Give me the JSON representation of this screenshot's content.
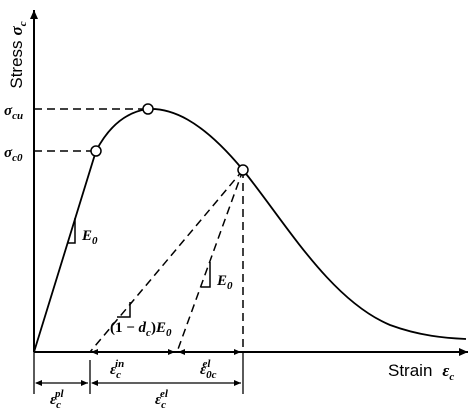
{
  "y_axis": {
    "title": "Stress",
    "symbol": "σ",
    "symbol_sub": "c"
  },
  "x_axis": {
    "title": "Strain",
    "symbol": "ε",
    "symbol_sub": "c"
  },
  "y_labels": {
    "peak": {
      "symbol": "σ",
      "sub": "cu"
    },
    "initial": {
      "symbol": "σ",
      "sub": "c0"
    }
  },
  "slope_labels": {
    "initial_modulus": {
      "symbol": "E",
      "sub": "0"
    },
    "unloading_modulus": {
      "symbol": "E",
      "sub": "0"
    },
    "damaged_modulus": {
      "prefix": "(1 − ",
      "d": "d",
      "d_sub": "c",
      "suffix": ")",
      "symbol": "E",
      "sub": "0"
    }
  },
  "strain_labels": {
    "inelastic": {
      "symbol": "ε",
      "sub": "c",
      "sup": "in"
    },
    "elastic_0": {
      "symbol": "ε",
      "sub": "0c",
      "sup": "el"
    },
    "plastic": {
      "symbol": "ε",
      "sub": "c",
      "sup": "pl"
    },
    "elastic": {
      "symbol": "ε",
      "sub": "c",
      "sup": "el"
    }
  }
}
